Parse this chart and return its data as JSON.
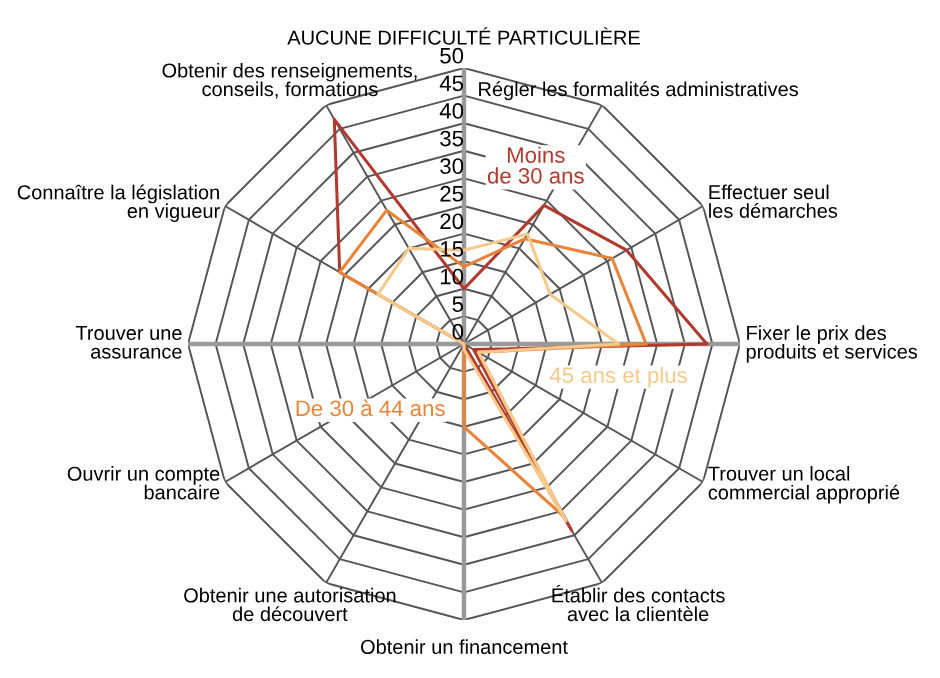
{
  "chart_data": {
    "type": "radar",
    "categories": [
      "AUCUNE DIFFICULTÉ PARTICULIÈRE",
      "Régler les formalités administratives",
      "Effectuer seul\nles démarches",
      "Fixer le prix des\nproduits et services",
      "Trouver un local\ncommercial approprié",
      "Établir des contacts\navec la clientèle",
      "Obtenir un financement",
      "Obtenir une autorisation\nde découvert",
      "Ouvrir un compte\nbancaire",
      "Trouver une\nassurance",
      "Connaître la législation\nen vigueur",
      "Obtenir des renseignements,\nconseils, formations"
    ],
    "series": [
      {
        "name": "Moins\nde 30 ans",
        "color": "#b03a2e",
        "values": [
          10,
          29,
          34,
          44,
          2,
          39,
          0,
          0,
          0,
          0,
          26,
          47
        ]
      },
      {
        "name": "De 30 à 44 ans",
        "color": "#e8843a",
        "values": [
          14,
          22,
          31,
          33,
          3,
          36,
          15,
          0,
          0,
          0,
          26,
          28
        ]
      },
      {
        "name": "45 ans et plus",
        "color": "#f5c98a",
        "values": [
          17,
          23,
          18,
          28,
          3,
          37,
          1,
          0,
          0,
          0,
          18,
          20
        ]
      }
    ],
    "ylim": [
      0,
      50
    ],
    "yticks": [
      0,
      5,
      10,
      15,
      20,
      25,
      30,
      35,
      40,
      45,
      50
    ],
    "grid": true,
    "legend": false
  }
}
